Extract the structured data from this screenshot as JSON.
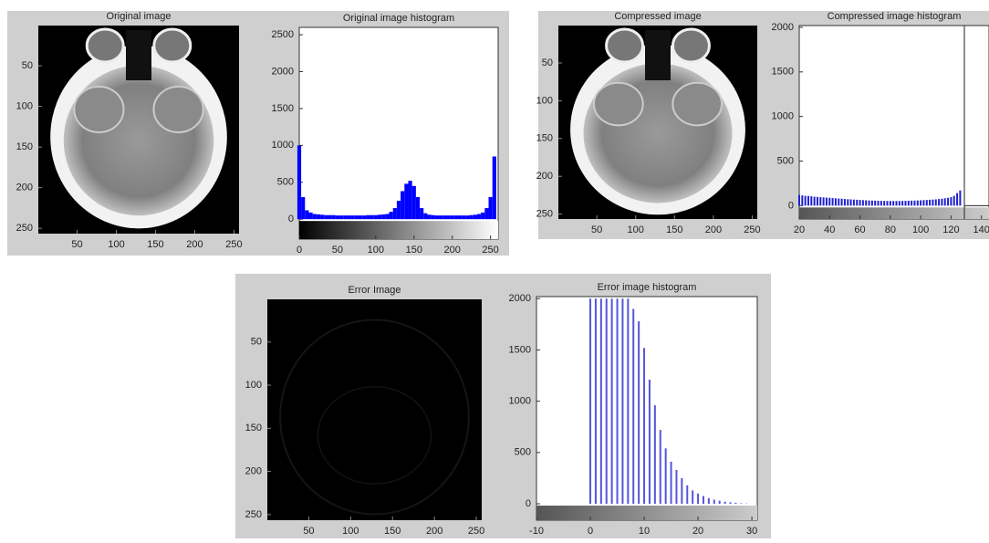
{
  "chart_data": [
    {
      "type": "image",
      "title": "Original image",
      "xlim": [
        0.5,
        256.5
      ],
      "ylim": [
        0.5,
        256.5
      ],
      "xticks": [
        50,
        100,
        150,
        200,
        250
      ],
      "yticks": [
        50,
        100,
        150,
        200,
        250
      ]
    },
    {
      "type": "bar",
      "title": "Original image histogram",
      "color": "#0000ff",
      "xlim": [
        0,
        260
      ],
      "ylim": [
        -270,
        2600
      ],
      "xticks": [
        0,
        50,
        100,
        150,
        200,
        250
      ],
      "yticks": [
        0,
        500,
        1000,
        1500,
        2000,
        2500
      ],
      "x": [
        0,
        5,
        10,
        15,
        20,
        25,
        30,
        35,
        40,
        45,
        50,
        55,
        60,
        65,
        70,
        75,
        80,
        85,
        90,
        95,
        100,
        105,
        110,
        115,
        120,
        125,
        130,
        135,
        140,
        145,
        150,
        155,
        160,
        165,
        170,
        175,
        180,
        185,
        190,
        195,
        200,
        205,
        210,
        215,
        220,
        225,
        230,
        235,
        240,
        245,
        250,
        255
      ],
      "values": [
        1000,
        300,
        120,
        90,
        70,
        65,
        60,
        55,
        55,
        55,
        50,
        50,
        50,
        50,
        50,
        50,
        50,
        50,
        55,
        55,
        55,
        60,
        65,
        70,
        100,
        150,
        250,
        380,
        480,
        520,
        450,
        300,
        150,
        80,
        60,
        55,
        50,
        50,
        50,
        50,
        50,
        50,
        50,
        50,
        50,
        55,
        60,
        70,
        90,
        150,
        300,
        850
      ]
    },
    {
      "type": "image",
      "title": "Compressed image",
      "xlim": [
        0.5,
        256.5
      ],
      "ylim": [
        0.5,
        256.5
      ],
      "xticks": [
        50,
        100,
        150,
        200,
        250
      ],
      "yticks": [
        50,
        100,
        150,
        200,
        250
      ]
    },
    {
      "type": "bar",
      "title": "Compressed image histogram",
      "color": "#2020d0",
      "xlim": [
        20,
        145
      ],
      "ylim": [
        -150,
        2020
      ],
      "xticks": [
        20,
        40,
        60,
        80,
        100,
        120,
        140
      ],
      "yticks": [
        0,
        500,
        1000,
        1500,
        2000
      ],
      "x": [
        20,
        22,
        24,
        26,
        28,
        30,
        32,
        34,
        36,
        38,
        40,
        42,
        44,
        46,
        48,
        50,
        52,
        54,
        56,
        58,
        60,
        62,
        64,
        66,
        68,
        70,
        72,
        74,
        76,
        78,
        80,
        82,
        84,
        86,
        88,
        90,
        92,
        94,
        96,
        98,
        100,
        102,
        104,
        106,
        108,
        110,
        112,
        114,
        116,
        118,
        120,
        122,
        124,
        126
      ],
      "values": [
        120,
        115,
        110,
        108,
        105,
        100,
        98,
        95,
        92,
        90,
        88,
        85,
        82,
        80,
        78,
        75,
        72,
        70,
        68,
        66,
        64,
        62,
        60,
        58,
        57,
        56,
        55,
        54,
        53,
        52,
        52,
        52,
        52,
        52,
        53,
        54,
        55,
        56,
        57,
        58,
        60,
        62,
        64,
        66,
        68,
        70,
        74,
        78,
        82,
        88,
        95,
        110,
        140,
        170
      ]
    },
    {
      "type": "image",
      "title": "Error Image",
      "xlim": [
        0.5,
        256.5
      ],
      "ylim": [
        0.5,
        256.5
      ],
      "xticks": [
        50,
        100,
        150,
        200,
        250
      ],
      "yticks": [
        50,
        100,
        150,
        200,
        250
      ]
    },
    {
      "type": "stem",
      "title": "Error image histogram",
      "color": "#5555dd",
      "xlim": [
        -10,
        31
      ],
      "ylim": [
        -160,
        2020
      ],
      "xticks": [
        -10,
        0,
        10,
        20,
        30
      ],
      "yticks": [
        0,
        500,
        1000,
        1500,
        2000
      ],
      "x": [
        0,
        1,
        2,
        3,
        4,
        5,
        6,
        7,
        8,
        9,
        10,
        11,
        12,
        13,
        14,
        15,
        16,
        17,
        18,
        19,
        20,
        21,
        22,
        23,
        24,
        25,
        26,
        27,
        28,
        29
      ],
      "values": [
        2000,
        2000,
        2000,
        2000,
        2000,
        2000,
        2000,
        2000,
        1900,
        1780,
        1520,
        1210,
        960,
        720,
        540,
        410,
        330,
        250,
        180,
        130,
        100,
        75,
        55,
        40,
        30,
        20,
        15,
        10,
        5,
        3
      ]
    }
  ]
}
